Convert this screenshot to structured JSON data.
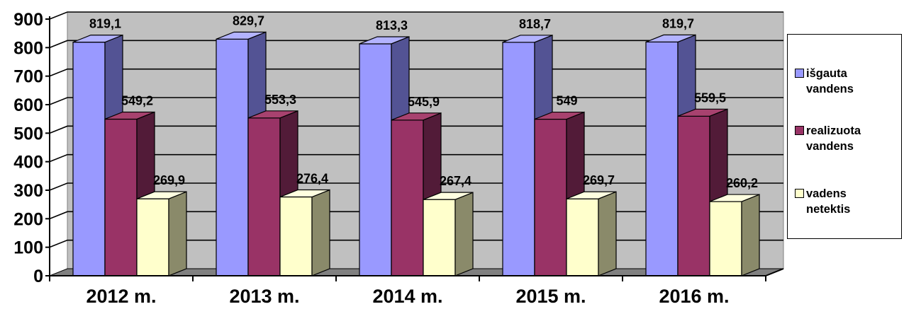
{
  "chart_data": {
    "type": "bar",
    "categories": [
      "2012 m.",
      "2013 m.",
      "2014 m.",
      "2015 m.",
      "2016 m."
    ],
    "series": [
      {
        "name": "išgauta\nvandens",
        "values": [
          819.1,
          829.7,
          813.3,
          818.7,
          819.7
        ],
        "labels": [
          "819,1",
          "829,7",
          "813,3",
          "818,7",
          "819,7"
        ],
        "color": "#9999ff",
        "side": "#535394",
        "top": "#b3b3ff"
      },
      {
        "name": "realizuota\nvandens",
        "values": [
          549.2,
          553.3,
          545.9,
          549,
          559.5
        ],
        "labels": [
          "549,2",
          "553,3",
          "545,9",
          "549",
          "559,5"
        ],
        "color": "#993366",
        "side": "#521b38",
        "top": "#a8426f"
      },
      {
        "name": "vadens\nnetektis",
        "values": [
          269.9,
          276.4,
          267.4,
          269.7,
          260.2
        ],
        "labels": [
          "269,9",
          "276,4",
          "267,4",
          "269,7",
          "260,2"
        ],
        "color": "#ffffcc",
        "side": "#8a8a6a",
        "top": "#ffffe0"
      }
    ],
    "yticks": [
      "0",
      "100",
      "200",
      "300",
      "400",
      "500",
      "600",
      "700",
      "800",
      "900"
    ],
    "ylim": [
      0,
      900
    ],
    "grid": true,
    "legend": "right",
    "plot_background": "#c0c0c0",
    "floor_color": "#808080"
  }
}
